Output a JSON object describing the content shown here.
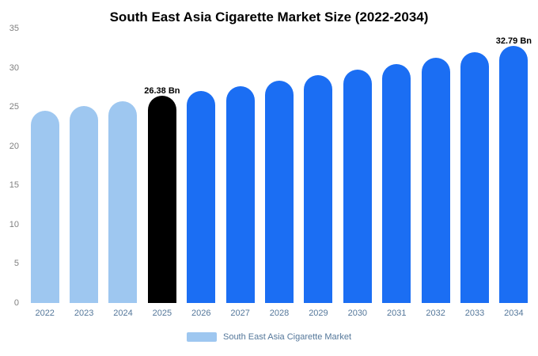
{
  "chart_data": {
    "type": "bar",
    "title": "South East Asia Cigarette Market Size (2022-2034)",
    "categories": [
      "2022",
      "2023",
      "2024",
      "2025",
      "2026",
      "2027",
      "2028",
      "2029",
      "2030",
      "2031",
      "2032",
      "2033",
      "2034"
    ],
    "values": [
      24.53,
      25.13,
      25.75,
      26.38,
      27.02,
      27.68,
      28.36,
      29.05,
      29.77,
      30.49,
      31.24,
      32.0,
      32.79
    ],
    "bar_styles": [
      "light",
      "light",
      "light",
      "highlight",
      "primary",
      "primary",
      "primary",
      "primary",
      "primary",
      "primary",
      "primary",
      "primary",
      "primary"
    ],
    "annotations": [
      {
        "index": 3,
        "label": "26.38 Bn"
      },
      {
        "index": 12,
        "label": "32.79 Bn"
      }
    ],
    "yticks": [
      0,
      5,
      10,
      15,
      20,
      25,
      30,
      35
    ],
    "ylim": [
      0,
      35
    ],
    "xlabel": "",
    "ylabel": "",
    "grid": false,
    "legend": "South East Asia Cigarette Market",
    "legend_position": "bottom",
    "colors": {
      "light": "#9ec7f0",
      "primary": "#1b6ef3",
      "highlight": "#000000"
    }
  }
}
